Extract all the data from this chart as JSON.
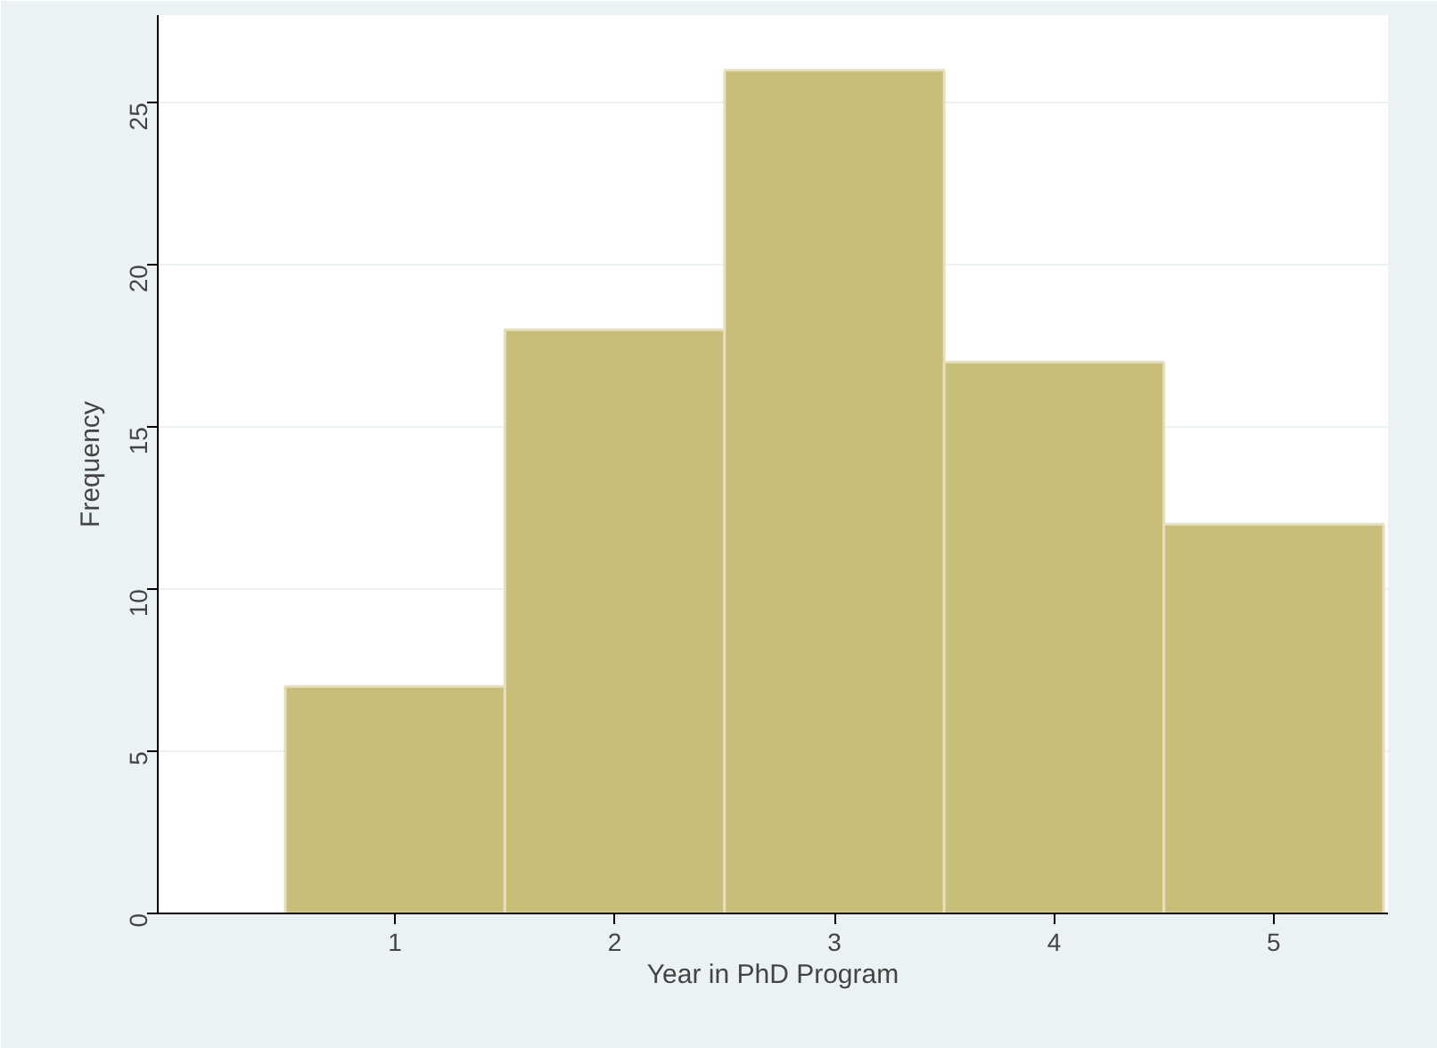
{
  "chart_data": {
    "type": "histogram",
    "xlabel": "Year in PhD Program",
    "ylabel": "Frequency",
    "bins": [
      0.5,
      1.5,
      2.5,
      3.5,
      4.5,
      5.5
    ],
    "values": [
      7,
      18,
      26,
      17,
      12
    ],
    "color": "#c9bd7a",
    "xlim": [
      -0.08,
      5.52
    ],
    "ylim": [
      0,
      27.7
    ],
    "xticks": [
      1,
      2,
      3,
      4,
      5
    ],
    "yticks": [
      0,
      5,
      10,
      15,
      20,
      25
    ],
    "grid": "y"
  }
}
